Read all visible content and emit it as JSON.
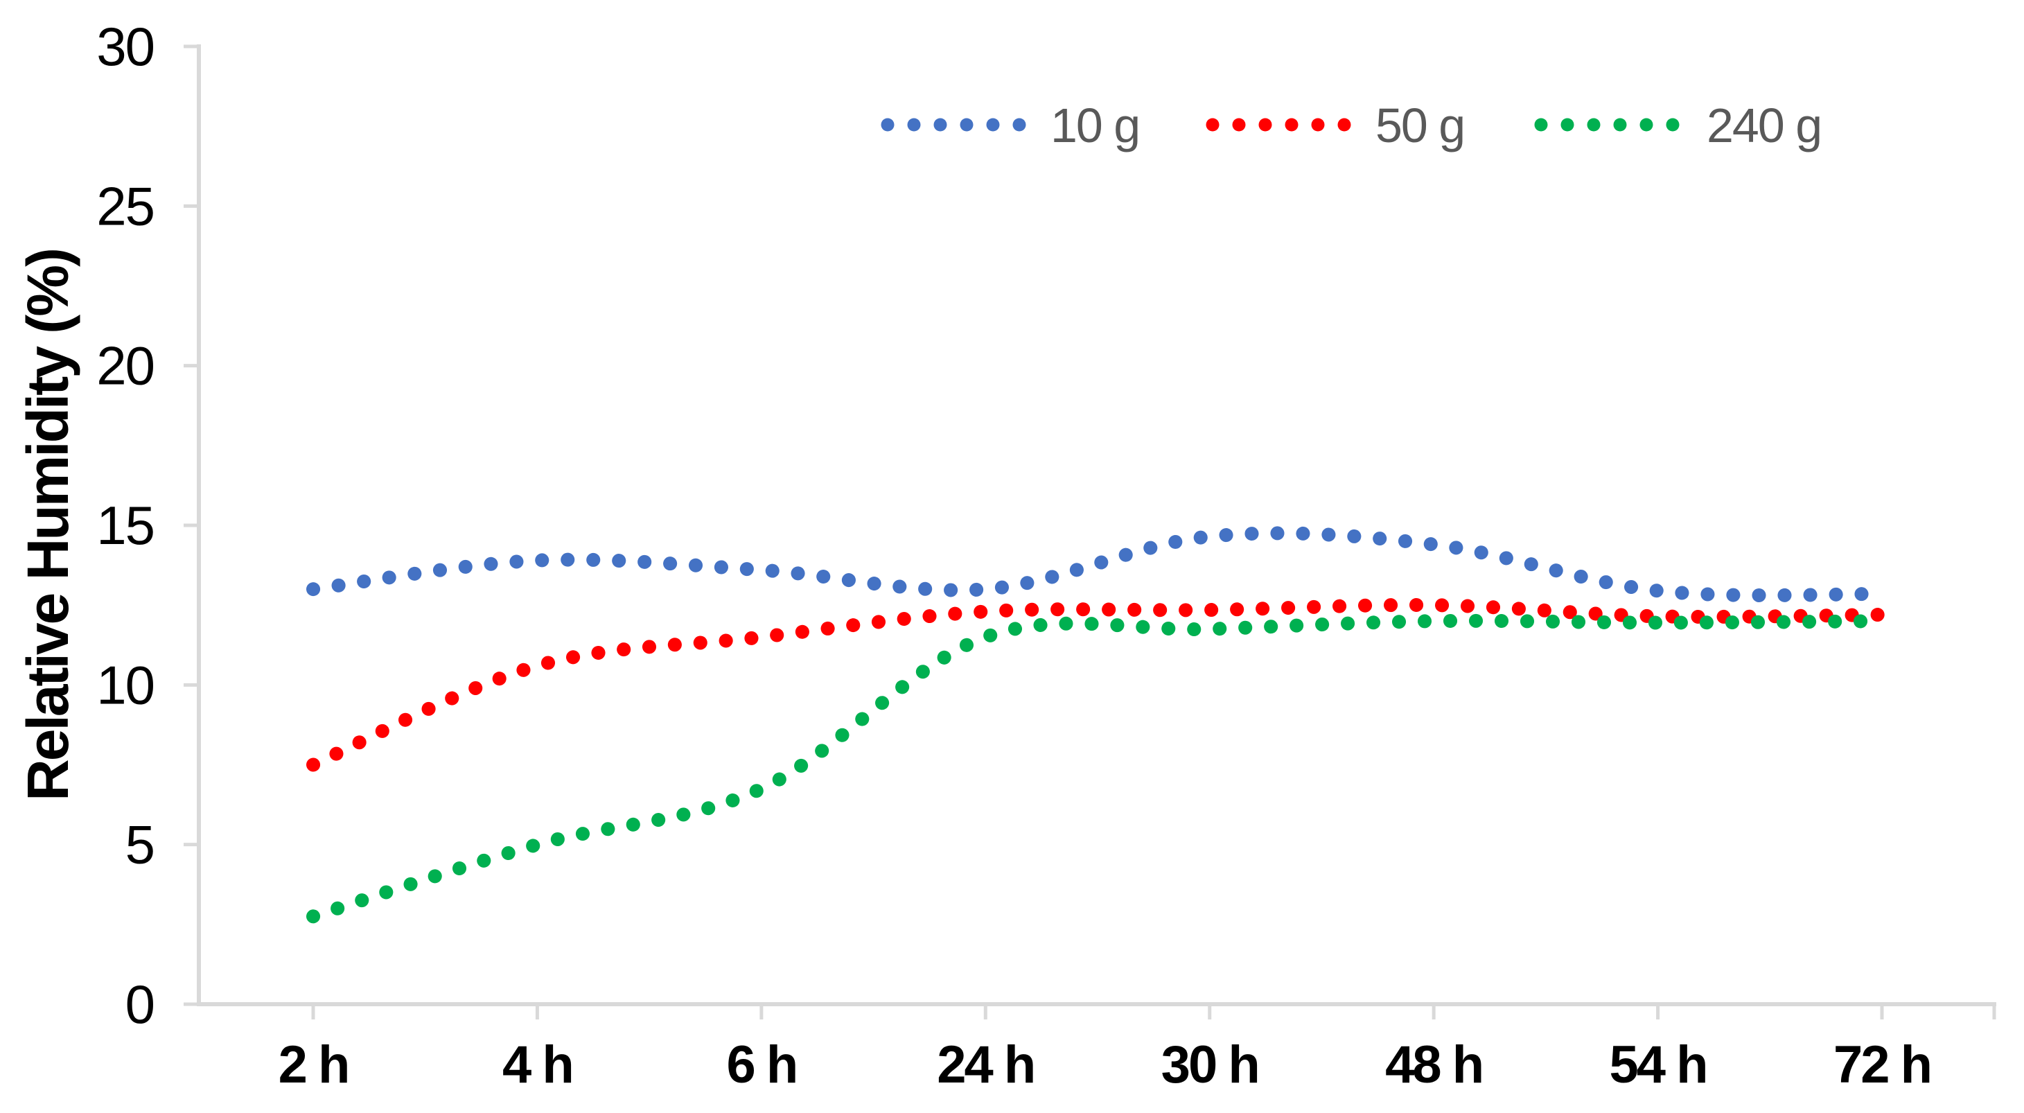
{
  "chart_data": {
    "type": "line",
    "line_style": "round-dot",
    "smoothed": true,
    "title": "",
    "xlabel": "",
    "ylabel": "Relative Humidity (%)",
    "categories": [
      "2 h",
      "4 h",
      "6 h",
      "24 h",
      "30 h",
      "48 h",
      "54 h",
      "72 h"
    ],
    "series": [
      {
        "name": "10 g",
        "color": "#4472C4",
        "values": [
          13.0,
          13.9,
          13.6,
          13.0,
          14.65,
          14.4,
          12.95,
          12.85
        ]
      },
      {
        "name": "50 g",
        "color": "#FF0000",
        "values": [
          7.5,
          10.6,
          11.5,
          12.3,
          12.35,
          12.5,
          12.15,
          12.2
        ]
      },
      {
        "name": "240 g",
        "color": "#00B050",
        "values": [
          2.75,
          5.0,
          6.75,
          11.5,
          11.75,
          12.0,
          11.95,
          12.0
        ]
      }
    ],
    "ylim": [
      0,
      30
    ],
    "yticks": [
      0,
      5,
      10,
      15,
      20,
      25,
      30
    ],
    "grid": false,
    "legend_position": "top-right",
    "axis_color": "#D9D9D9",
    "tick_label_color": "#000000",
    "legend_text_color": "#595959"
  }
}
